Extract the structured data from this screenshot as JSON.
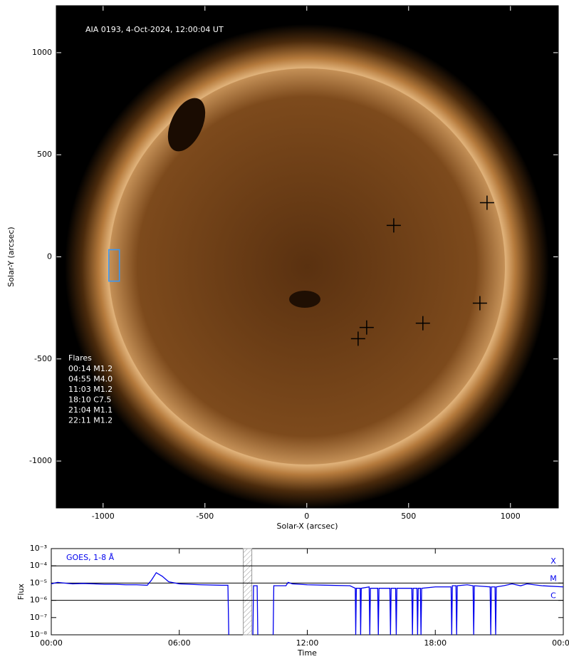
{
  "chart_data": [
    {
      "type": "image",
      "annotation": "AIA 0193, 4-Oct-2024, 12:00:04 UT",
      "xlabel": "Solar-X (arcsec)",
      "ylabel": "Solar-Y (arcsec)",
      "xlim": [
        -1230,
        1235
      ],
      "ylim": [
        -1230,
        1230
      ],
      "xticks": [
        -1000,
        -500,
        0,
        500,
        1000
      ],
      "yticks": [
        -1000,
        -500,
        0,
        500,
        1000
      ],
      "flare_positions": {
        "x": [
          427,
          885,
          294,
          252,
          570,
          850
        ],
        "y": [
          154,
          265,
          -346,
          -401,
          -325,
          -227
        ],
        "color": "#000000"
      },
      "box": {
        "xlim": [
          -972,
          -920
        ],
        "ylim": [
          -119,
          35
        ],
        "color": "#3399ff"
      },
      "flare_list_title": "Flares",
      "flare_list": [
        "00:14 M1.2",
        "04:55 M4.0",
        "11:03 M1.2",
        "18:10 C7.5",
        "21:04 M1.1",
        "22:11 M1.2"
      ]
    },
    {
      "type": "line",
      "log_y": true,
      "xlabel": "Time",
      "ylabel": "Flux",
      "xlim": [
        0,
        24
      ],
      "ylim": [
        1e-08,
        0.001
      ],
      "xticks": [
        {
          "value": 0,
          "label": "00:00"
        },
        {
          "value": 6,
          "label": "06:00"
        },
        {
          "value": 12,
          "label": "12:00"
        },
        {
          "value": 18,
          "label": "18:00"
        },
        {
          "value": 24,
          "label": "00:00"
        }
      ],
      "yticks": [
        {
          "value": 1e-08,
          "label": "10⁻⁸"
        },
        {
          "value": 1e-07,
          "label": "10⁻⁷"
        },
        {
          "value": 1e-06,
          "label": "10⁻⁶"
        },
        {
          "value": 1e-05,
          "label": "10⁻⁵"
        },
        {
          "value": 0.0001,
          "label": "10⁻⁴"
        },
        {
          "value": 0.001,
          "label": "10⁻³"
        }
      ],
      "class_levels": [
        {
          "label": "X",
          "value": 0.0001
        },
        {
          "label": "M",
          "value": 1e-05
        },
        {
          "label": "C",
          "value": 1e-06
        }
      ],
      "highlight": [
        9.0,
        9.4
      ],
      "series": [
        {
          "name": "GOES, 1-8 Å",
          "color": "#0000ee",
          "x": [
            0,
            0.3,
            0.6,
            1,
            1.5,
            2,
            2.5,
            3,
            3.5,
            4,
            4.5,
            4.7,
            4.92,
            5.2,
            5.5,
            6,
            7,
            8,
            8.28,
            8.32,
            8.9,
            9.45,
            9.48,
            9.65,
            9.68,
            10.0,
            10.4,
            10.43,
            11.0,
            11.1,
            11.3,
            12,
            13,
            14,
            14.25,
            14.27,
            14.3,
            14.48,
            14.5,
            14.53,
            14.9,
            14.93,
            14.96,
            15.3,
            15.33,
            15.36,
            15.87,
            15.9,
            15.93,
            16.14,
            16.17,
            16.2,
            16.9,
            16.93,
            16.96,
            17.14,
            17.17,
            17.2,
            17.3,
            17.33,
            17.36,
            18,
            18.74,
            18.77,
            18.8,
            18.97,
            19,
            19.03,
            19.5,
            19.77,
            19.8,
            19.83,
            20.57,
            20.6,
            20.63,
            20.8,
            20.83,
            20.86,
            21.2,
            21.6,
            22,
            22.3,
            23,
            24
          ],
          "values": [
            9e-06,
            1.1e-05,
            1e-05,
            9e-06,
            9.5e-06,
            9e-06,
            8.5e-06,
            8.5e-06,
            8e-06,
            8e-06,
            7.5e-06,
            1.5e-05,
            4e-05,
            2.5e-05,
            1.2e-05,
            9e-06,
            8e-06,
            7.5e-06,
            7.5e-06,
            1e-08,
            null,
            1e-08,
            7e-06,
            7e-06,
            1e-08,
            null,
            1e-08,
            7e-06,
            7e-06,
            1.1e-05,
            9e-06,
            8e-06,
            7.5e-06,
            7e-06,
            5e-06,
            1e-08,
            5e-06,
            5e-06,
            1e-08,
            5e-06,
            6e-06,
            1e-08,
            5e-06,
            5e-06,
            1e-08,
            5e-06,
            5e-06,
            1e-08,
            5e-06,
            5e-06,
            1e-08,
            5e-06,
            5e-06,
            1e-08,
            5e-06,
            5e-06,
            1e-08,
            5e-06,
            5e-06,
            1e-08,
            5e-06,
            6e-06,
            6e-06,
            1e-08,
            7e-06,
            7e-06,
            1e-08,
            7e-06,
            8e-06,
            7e-06,
            1e-08,
            7e-06,
            6e-06,
            1e-08,
            6e-06,
            6e-06,
            1e-08,
            6e-06,
            7e-06,
            9e-06,
            7e-06,
            9e-06,
            7e-06,
            6e-06
          ]
        }
      ]
    }
  ]
}
